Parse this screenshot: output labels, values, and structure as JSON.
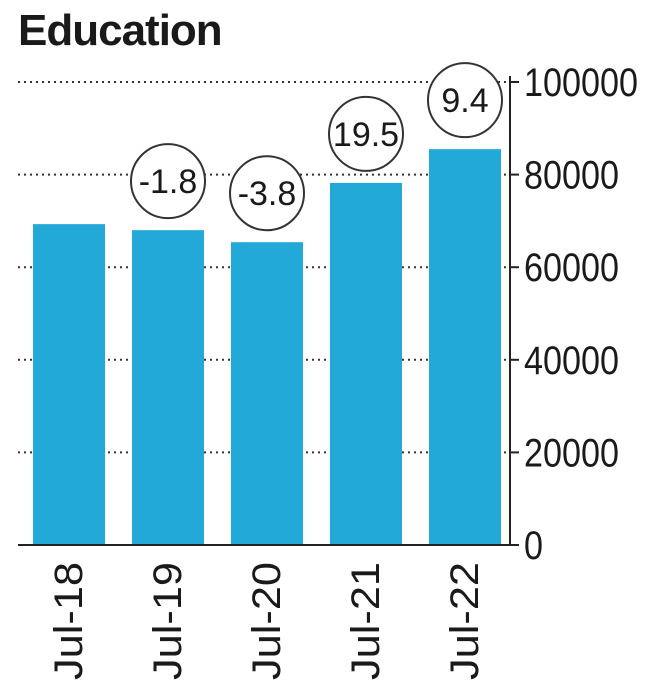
{
  "chart_data": {
    "type": "bar",
    "title": "Education",
    "categories": [
      "Jul-18",
      "Jul-19",
      "Jul-20",
      "Jul-21",
      "Jul-22"
    ],
    "values": [
      69300,
      68000,
      65400,
      78200,
      85500
    ],
    "growth_labels": [
      "",
      "-1.8",
      "-3.8",
      "19.5",
      "9.4"
    ],
    "ylim": [
      0,
      100000
    ],
    "yticks": [
      0,
      20000,
      40000,
      60000,
      80000,
      100000
    ],
    "ytick_labels": [
      "0",
      "20000",
      "40000",
      "60000",
      "80000",
      "100000"
    ],
    "xlabel": "",
    "ylabel": "",
    "grid": true,
    "bar_color": "#22a9d8",
    "grid_color": "#333333"
  }
}
